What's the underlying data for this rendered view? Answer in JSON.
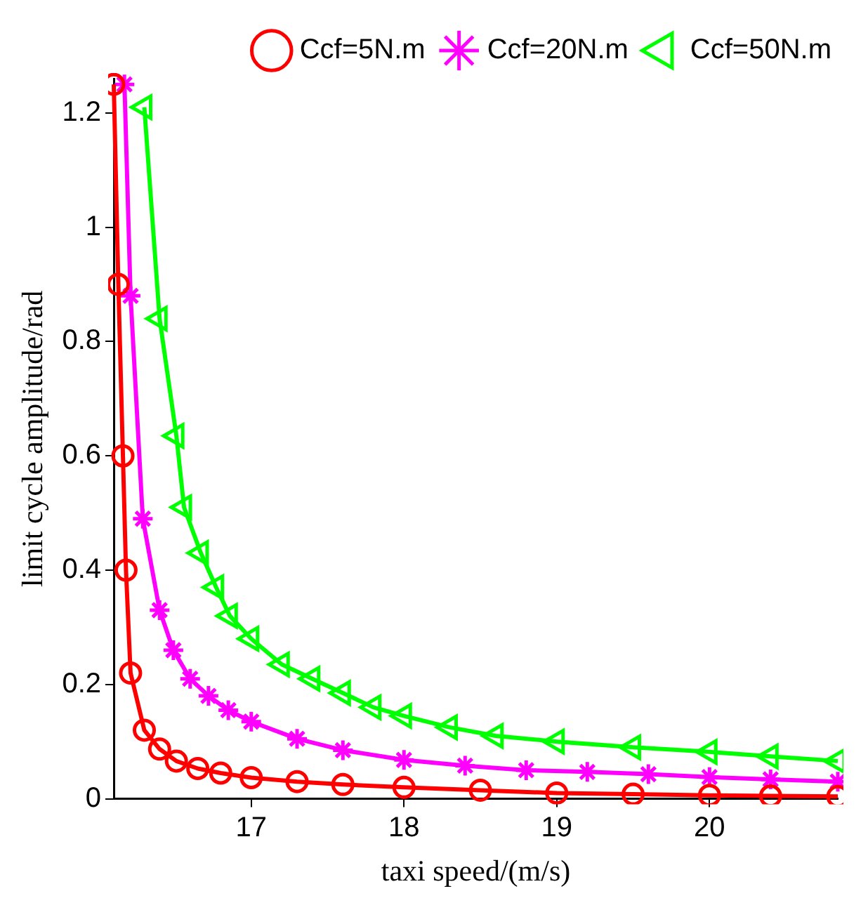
{
  "chart_data": {
    "type": "line",
    "xlabel": "taxi speed/(m/s)",
    "ylabel": "limit cycle amplitude/rad",
    "xlim": [
      16.1,
      20.84
    ],
    "xticks": [
      17,
      18,
      19,
      20
    ],
    "ylim": [
      0,
      1.26
    ],
    "yticks": [
      0,
      0.2,
      0.4,
      0.6,
      0.8,
      1,
      1.2
    ],
    "grid": false,
    "legend": "top right",
    "series": [
      {
        "name": "Ccf=5N.m",
        "color": "#ff0000",
        "marker": "circle",
        "x": [
          16.1,
          16.13,
          16.16,
          16.18,
          16.21,
          16.3,
          16.4,
          16.51,
          16.65,
          16.8,
          17.0,
          17.3,
          17.6,
          18.0,
          18.5,
          19.0,
          19.5,
          20.0,
          20.4,
          20.84
        ],
        "values": [
          1.25,
          0.9,
          0.6,
          0.4,
          0.22,
          0.12,
          0.087,
          0.066,
          0.053,
          0.045,
          0.037,
          0.03,
          0.025,
          0.02,
          0.015,
          0.01,
          0.008,
          0.006,
          0.005,
          0.004
        ]
      },
      {
        "name": "Ccf=20N.m",
        "color": "#ff00ff",
        "marker": "cross",
        "x": [
          16.17,
          16.21,
          16.29,
          16.4,
          16.49,
          16.6,
          16.72,
          16.85,
          17.0,
          17.3,
          17.6,
          18.0,
          18.4,
          18.8,
          19.2,
          19.6,
          20.0,
          20.4,
          20.84
        ],
        "values": [
          1.25,
          0.88,
          0.49,
          0.33,
          0.26,
          0.21,
          0.18,
          0.155,
          0.135,
          0.105,
          0.085,
          0.068,
          0.058,
          0.05,
          0.047,
          0.043,
          0.038,
          0.034,
          0.03
        ]
      },
      {
        "name": "Ccf=50N.m",
        "color": "#00ff00",
        "marker": "triangle",
        "x": [
          16.3,
          16.4,
          16.51,
          16.56,
          16.67,
          16.77,
          16.86,
          17.0,
          17.2,
          17.4,
          17.6,
          17.8,
          18.0,
          18.3,
          18.6,
          19.0,
          19.5,
          20.0,
          20.4,
          20.84
        ],
        "values": [
          1.21,
          0.84,
          0.635,
          0.51,
          0.43,
          0.37,
          0.32,
          0.28,
          0.235,
          0.21,
          0.185,
          0.16,
          0.145,
          0.125,
          0.11,
          0.1,
          0.09,
          0.082,
          0.074,
          0.066
        ]
      }
    ]
  }
}
